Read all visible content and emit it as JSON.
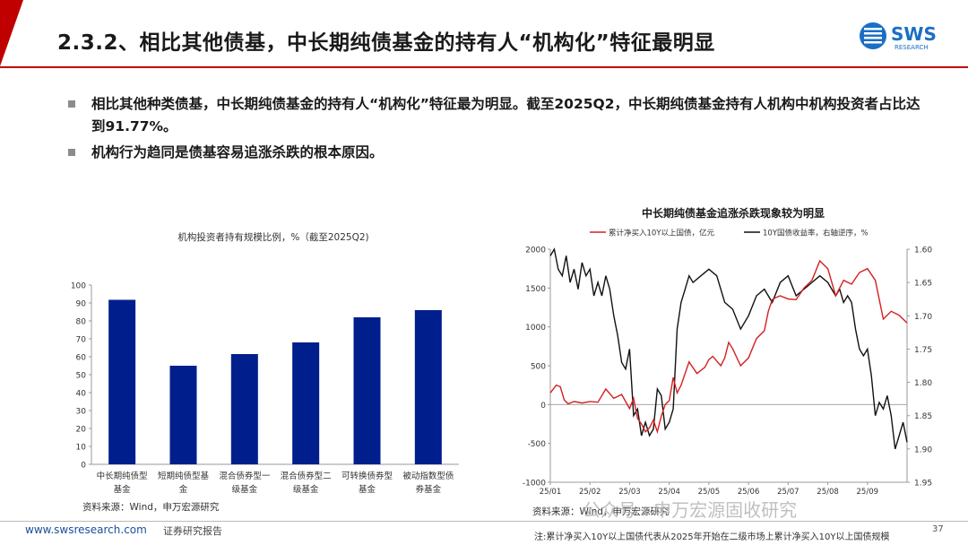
{
  "slide": {
    "title": "2.3.2、相比其他债基，中长期纯债基金的持有人“机构化”特征最明显",
    "logo_text": "SWS",
    "logo_sub": "RESEARCH"
  },
  "bullets": [
    "相比其他种类债基，中长期纯债基金的持有人“机构化”特征最为明显。截至2025Q2，中长期纯债基金持有人机构中机构投资者占比达到91.77%。",
    "机构行为趋同是债基容易追涨杀跌的根本原因。"
  ],
  "left_source": "资料来源：Wind，申万宏源研究",
  "right_source": "资料来源：Wind，申万宏源研究",
  "footer": {
    "url": "www.swsresearch.com",
    "report": "证券研究报告",
    "page": "37",
    "note": "注:累计净买入10Y以上国债代表从2025年开始在二级市场上累计净买入10Y以上国债规模"
  },
  "watermark": "公众号 · 申万宏源固收研究",
  "colors": {
    "bar": "#001f8c",
    "red": "#d42020",
    "black": "#111111",
    "accent": "#c00000",
    "logo_blue": "#1a6fc4"
  },
  "chart_data": [
    {
      "type": "bar",
      "title": "机构投资者持有规模比例，%（截至2025Q2)",
      "categories": [
        "中长期纯债型基金",
        "短期纯债型基金",
        "混合债券型一级基金",
        "混合债券型二级基金",
        "可转换债券型基金",
        "被动指数型债券基金"
      ],
      "category_lines": [
        [
          "中长期纯债型",
          "基金"
        ],
        [
          "短期纯债型基",
          "金"
        ],
        [
          "混合债券型一",
          "级基金"
        ],
        [
          "混合债券型二",
          "级基金"
        ],
        [
          "可转换债券型",
          "基金"
        ],
        [
          "被动指数型债",
          "券基金"
        ]
      ],
      "values": [
        91.77,
        55,
        61.5,
        68,
        82,
        86
      ],
      "ylim": [
        0,
        100
      ],
      "yticks": [
        0,
        10,
        20,
        30,
        40,
        50,
        60,
        70,
        80,
        90,
        100
      ],
      "grid": false
    },
    {
      "type": "line",
      "title": "中长期纯债基金追涨杀跌现象较为明显",
      "legend_position": "top",
      "x_ticks": [
        "25/01",
        "25/02",
        "25/03",
        "25/04",
        "25/05",
        "25/06",
        "25/07",
        "25/08",
        "25/09"
      ],
      "x_range": [
        0,
        9
      ],
      "left_axis": {
        "ylim": [
          -1000,
          2000
        ],
        "ticks": [
          2000,
          1500,
          1000,
          500,
          0,
          -500,
          -1000
        ]
      },
      "right_axis": {
        "ylim": [
          1.6,
          1.95
        ],
        "inverted": true,
        "ticks": [
          "1.60",
          "1.65",
          "1.70",
          "1.75",
          "1.80",
          "1.85",
          "1.90",
          "1.95"
        ]
      },
      "series": [
        {
          "name": "累计净买入10Y以上国债，亿元",
          "axis": "left",
          "color": "#d42020",
          "x": [
            0,
            0.15,
            0.25,
            0.35,
            0.45,
            0.6,
            0.8,
            1.0,
            1.2,
            1.4,
            1.6,
            1.8,
            2.0,
            2.1,
            2.2,
            2.3,
            2.4,
            2.5,
            2.6,
            2.7,
            2.8,
            2.9,
            3.0,
            3.1,
            3.2,
            3.3,
            3.5,
            3.7,
            3.9,
            4.0,
            4.1,
            4.2,
            4.3,
            4.4,
            4.5,
            4.6,
            4.8,
            5.0,
            5.2,
            5.4,
            5.5,
            5.6,
            5.7,
            5.8,
            6.0,
            6.2,
            6.4,
            6.6,
            6.8,
            7.0,
            7.2,
            7.4,
            7.6,
            7.8,
            8.0,
            8.2,
            8.4,
            8.6,
            8.8,
            9.0
          ],
          "y": [
            150,
            250,
            230,
            60,
            10,
            40,
            20,
            40,
            30,
            200,
            80,
            130,
            -50,
            80,
            -180,
            -250,
            -350,
            -300,
            -200,
            -350,
            -150,
            0,
            50,
            350,
            150,
            250,
            550,
            400,
            480,
            580,
            620,
            560,
            500,
            600,
            800,
            720,
            500,
            600,
            850,
            950,
            1200,
            1350,
            1380,
            1400,
            1360,
            1350,
            1500,
            1600,
            1850,
            1750,
            1400,
            1600,
            1550,
            1700,
            1750,
            1600,
            1100,
            1200,
            1150,
            1050
          ]
        },
        {
          "name": "10Y国债收益率，右轴逆序，%",
          "axis": "right",
          "color": "#111111",
          "x": [
            0,
            0.1,
            0.2,
            0.3,
            0.4,
            0.5,
            0.6,
            0.7,
            0.8,
            0.9,
            1.0,
            1.1,
            1.2,
            1.3,
            1.4,
            1.5,
            1.6,
            1.7,
            1.8,
            1.9,
            2.0,
            2.1,
            2.2,
            2.3,
            2.4,
            2.5,
            2.6,
            2.7,
            2.8,
            2.9,
            3.0,
            3.1,
            3.15,
            3.2,
            3.3,
            3.4,
            3.5,
            3.6,
            3.8,
            4.0,
            4.2,
            4.4,
            4.6,
            4.8,
            5.0,
            5.2,
            5.4,
            5.6,
            5.8,
            6.0,
            6.2,
            6.4,
            6.6,
            6.8,
            7.0,
            7.1,
            7.2,
            7.3,
            7.4,
            7.5,
            7.6,
            7.7,
            7.8,
            7.9,
            8.0,
            8.1,
            8.2,
            8.3,
            8.4,
            8.5,
            8.6,
            8.7,
            8.8,
            8.9,
            9.0
          ],
          "y": [
            1.61,
            1.6,
            1.63,
            1.64,
            1.61,
            1.65,
            1.63,
            1.66,
            1.62,
            1.64,
            1.63,
            1.67,
            1.65,
            1.67,
            1.64,
            1.66,
            1.7,
            1.73,
            1.77,
            1.78,
            1.75,
            1.85,
            1.84,
            1.88,
            1.86,
            1.88,
            1.87,
            1.81,
            1.82,
            1.87,
            1.86,
            1.84,
            1.78,
            1.72,
            1.68,
            1.66,
            1.64,
            1.65,
            1.64,
            1.63,
            1.64,
            1.68,
            1.69,
            1.72,
            1.7,
            1.67,
            1.66,
            1.68,
            1.65,
            1.64,
            1.67,
            1.66,
            1.65,
            1.64,
            1.65,
            1.66,
            1.67,
            1.66,
            1.68,
            1.67,
            1.68,
            1.72,
            1.75,
            1.76,
            1.75,
            1.79,
            1.85,
            1.83,
            1.84,
            1.82,
            1.85,
            1.9,
            1.88,
            1.86,
            1.89
          ]
        }
      ]
    }
  ]
}
